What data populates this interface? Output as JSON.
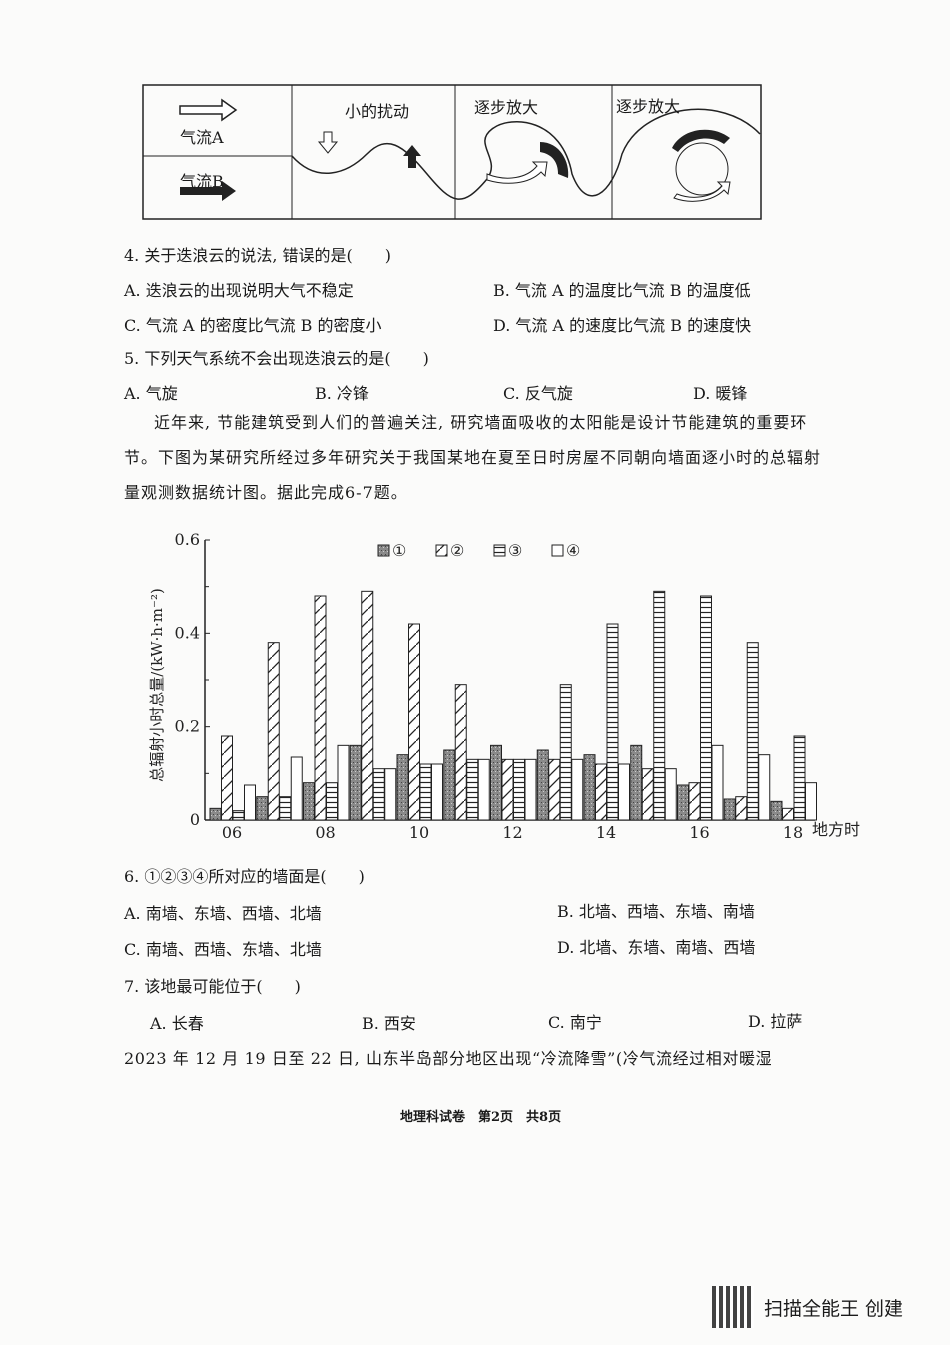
{
  "diagram": {
    "airflow_a": "气流A",
    "airflow_b": "气流B",
    "stage1": "小的扰动",
    "stage2": "逐步放大",
    "stage3": "逐步放大"
  },
  "q4": {
    "stem": "4. 关于迭浪云的说法, 错误的是(　　)",
    "options": [
      "A. 迭浪云的出现说明大气不稳定",
      "B. 气流 A 的温度比气流 B 的温度低",
      "C. 气流 A 的密度比气流 B 的密度小",
      "D. 气流 A 的速度比气流 B 的速度快"
    ]
  },
  "q5": {
    "stem": "5. 下列天气系统不会出现迭浪云的是(　　)",
    "options": [
      "A. 气旋",
      "B. 冷锋",
      "C. 反气旋",
      "D. 暖锋"
    ]
  },
  "intro": "近年来, 节能建筑受到人们的普遍关注, 研究墙面吸收的太阳能是设计节能建筑的重要环节。下图为某研究所经过多年研究关于我国某地在夏至日时房屋不同朝向墙面逐小时的总辐射量观测数据统计图。据此完成6-7题。",
  "chart_data": {
    "type": "bar",
    "ylabel": "总辐射小时总量/(kW·h·m⁻²)",
    "xlabel": "地方时",
    "ylim": [
      0,
      0.6
    ],
    "yticks": [
      "0",
      "0.2",
      "0.4",
      "0.6"
    ],
    "xticks": [
      "06",
      "08",
      "10",
      "12",
      "14",
      "16",
      "18"
    ],
    "x": [
      6,
      7,
      8,
      9,
      10,
      11,
      12,
      13,
      14,
      15,
      16,
      17,
      18
    ],
    "legend_position": "top-right",
    "series": [
      {
        "name": "①",
        "pattern": "stipple",
        "values": [
          0.025,
          0.05,
          0.08,
          0.16,
          0.14,
          0.15,
          0.16,
          0.15,
          0.14,
          0.16,
          0.075,
          0.045,
          0.04
        ]
      },
      {
        "name": "②",
        "pattern": "diagonal",
        "values": [
          0.18,
          0.38,
          0.48,
          0.49,
          0.42,
          0.29,
          0.13,
          0.13,
          0.12,
          0.11,
          0.08,
          0.05,
          0.025
        ]
      },
      {
        "name": "③",
        "pattern": "horizontal",
        "values": [
          0.02,
          0.05,
          0.08,
          0.11,
          0.12,
          0.13,
          0.13,
          0.29,
          0.42,
          0.49,
          0.48,
          0.38,
          0.18
        ]
      },
      {
        "name": "④",
        "pattern": "blank",
        "values": [
          0.075,
          0.135,
          0.16,
          0.11,
          0.12,
          0.13,
          0.13,
          0.13,
          0.12,
          0.11,
          0.16,
          0.14,
          0.08
        ]
      }
    ]
  },
  "q6": {
    "stem": "6. ①②③④所对应的墙面是(　　)",
    "options": [
      "A. 南墙、东墙、西墙、北墙",
      "B. 北墙、西墙、东墙、南墙",
      "C. 南墙、西墙、东墙、北墙",
      "D. 北墙、东墙、南墙、西墙"
    ]
  },
  "q7": {
    "stem": "7. 该地最可能位于(　　)",
    "options": [
      "A. 长春",
      "B. 西安",
      "C. 南宁",
      "D. 拉萨"
    ]
  },
  "next_intro": "2023 年 12 月 19 日至 22 日, 山东半岛部分地区出现“冷流降雪”(冷气流经过相对暖湿",
  "footer": "地理科试卷　第2页　共8页",
  "watermark": "扫描全能王 创建"
}
